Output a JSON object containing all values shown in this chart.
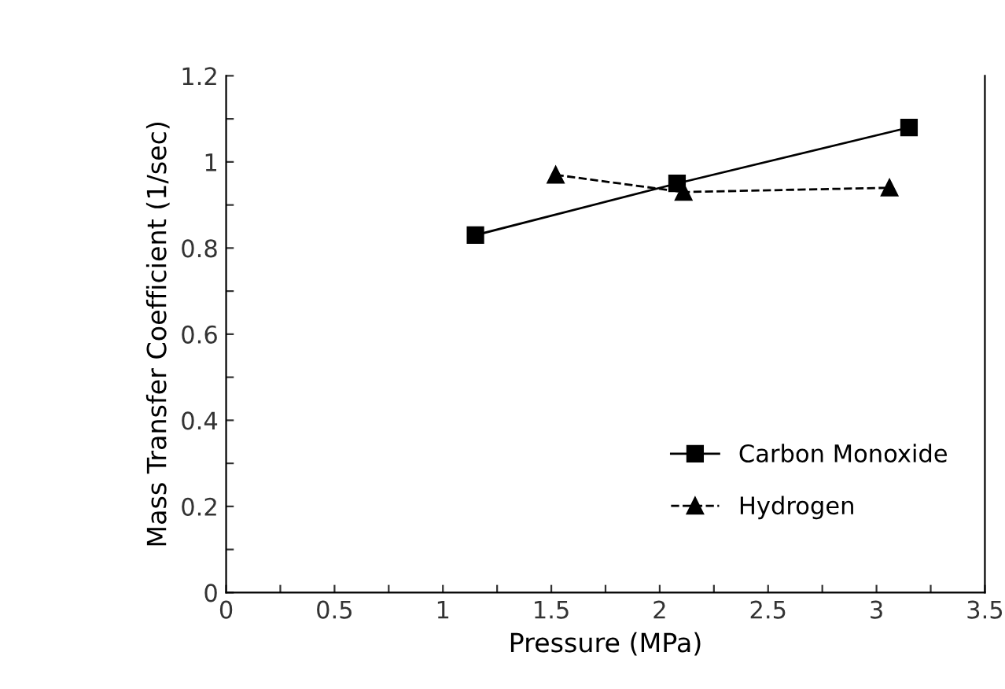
{
  "chart_data": {
    "type": "line",
    "xlabel": "Pressure (MPa)",
    "ylabel": "Mass Transfer Coefficient (1/sec)",
    "xlim": [
      0,
      3.5
    ],
    "ylim": [
      0,
      1.2
    ],
    "xticks": [
      0,
      {
        "value": 0.25,
        "label": null
      },
      0.5,
      {
        "value": 0.75,
        "label": null
      },
      1,
      {
        "value": 1.25,
        "label": null
      },
      1.5,
      {
        "value": 1.75,
        "label": null
      },
      2,
      {
        "value": 2.25,
        "label": null
      },
      2.5,
      {
        "value": 2.75,
        "label": null
      },
      3,
      {
        "value": 3.25,
        "label": null
      },
      3.5
    ],
    "yticks": [
      0,
      {
        "value": 0.1,
        "label": null
      },
      0.2,
      {
        "value": 0.3,
        "label": null
      },
      0.4,
      {
        "value": 0.5,
        "label": null
      },
      0.6,
      {
        "value": 0.7,
        "label": null
      },
      0.8,
      {
        "value": 0.9,
        "label": null
      },
      1,
      {
        "value": 1.1,
        "label": null
      },
      1.2
    ],
    "grid": false,
    "legend": "bottom right",
    "series": [
      {
        "name": "Carbon Monoxide",
        "color": "#000000",
        "marker": "square",
        "line_style": "solid",
        "x": [
          1.15,
          2.08,
          3.15
        ],
        "values": [
          0.83,
          0.95,
          1.08
        ]
      },
      {
        "name": "Hydrogen",
        "color": "#000000",
        "marker": "triangle",
        "line_style": "dashed",
        "x": [
          1.52,
          2.11,
          3.06
        ],
        "values": [
          0.97,
          0.93,
          0.94
        ]
      }
    ]
  }
}
